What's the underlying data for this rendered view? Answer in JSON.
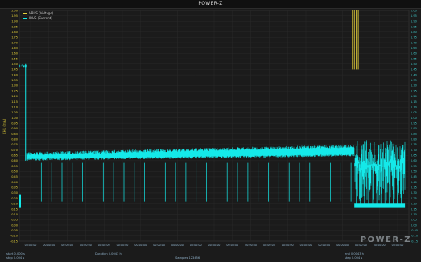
{
  "window": {
    "title": "POWER-Z"
  },
  "watermark": "POWER-Z",
  "status": {
    "bottom_left_1": "start 0.000 s",
    "bottom_left_2": "step 0.004 s",
    "bottom_center_1": "Duration 0.0043 h",
    "bottom_center_2": "Samples 123456",
    "bottom_right_1": "end 0.0043 h",
    "bottom_right_2": "step 0.004 s"
  },
  "colors": {
    "background": "#1b1b1b",
    "grid": "#2d2d2d",
    "current_trace": "#14e9e9",
    "voltage_trace": "#e6d23a",
    "axis_text": "#e6d23a",
    "right_axis_text": "#3fc3c3"
  },
  "chart_data": {
    "type": "line",
    "title": "POWER-Z",
    "ylabel": "CH1 (mA)",
    "xlabel": "",
    "ylim": [
      -0.15,
      2.0
    ],
    "y_ticks": [
      "2.00",
      "1.95",
      "1.90",
      "1.85",
      "1.80",
      "1.75",
      "1.70",
      "1.65",
      "1.60",
      "1.55",
      "1.50",
      "1.45",
      "1.40",
      "1.35",
      "1.30",
      "1.25",
      "1.20",
      "1.15",
      "1.10",
      "1.05",
      "1.00",
      "0.95",
      "0.90",
      "0.85",
      "0.80",
      "0.75",
      "0.70",
      "0.65",
      "0.60",
      "0.55",
      "0.50",
      "0.45",
      "0.40",
      "0.35",
      "0.30",
      "0.25",
      "0.20",
      "0.15",
      "0.10",
      "0.05",
      "0.00",
      "-0.05",
      "-0.10",
      "-0.15"
    ],
    "x_ticks": [
      "00:00:00",
      "00:00:00",
      "00:00:00",
      "00:00:00",
      "00:00:00",
      "00:00:00",
      "00:00:00",
      "00:00:00",
      "00:00:00",
      "00:00:00",
      "00:00:00",
      "00:00:00",
      "00:00:00",
      "00:00:00",
      "00:00:00",
      "00:00:00",
      "00:00:00",
      "00:00:00",
      "00:00:00",
      "00:00:00",
      "00:00:00"
    ],
    "grid": true,
    "legend_position": "top-left",
    "series": [
      {
        "name": "VBUS (Voltage)",
        "color": "#e6d23a"
      },
      {
        "name": "IBUS (Current)",
        "color": "#14e9e9"
      }
    ],
    "segments": [
      {
        "start": 0.0,
        "end": 0.018,
        "low": 1.47,
        "high": 1.5
      },
      {
        "start": 0.018,
        "end": 0.86,
        "low_start": 0.6,
        "low_end": 0.64,
        "high_start": 0.68,
        "high_end": 0.75
      },
      {
        "start": 0.86,
        "end": 0.99,
        "low": 0.22,
        "high": 0.8
      }
    ],
    "voltage_spikes_x": [
      0.855,
      0.86,
      0.865,
      0.87
    ],
    "voltage_spike_range": [
      1.45,
      2.05
    ]
  }
}
